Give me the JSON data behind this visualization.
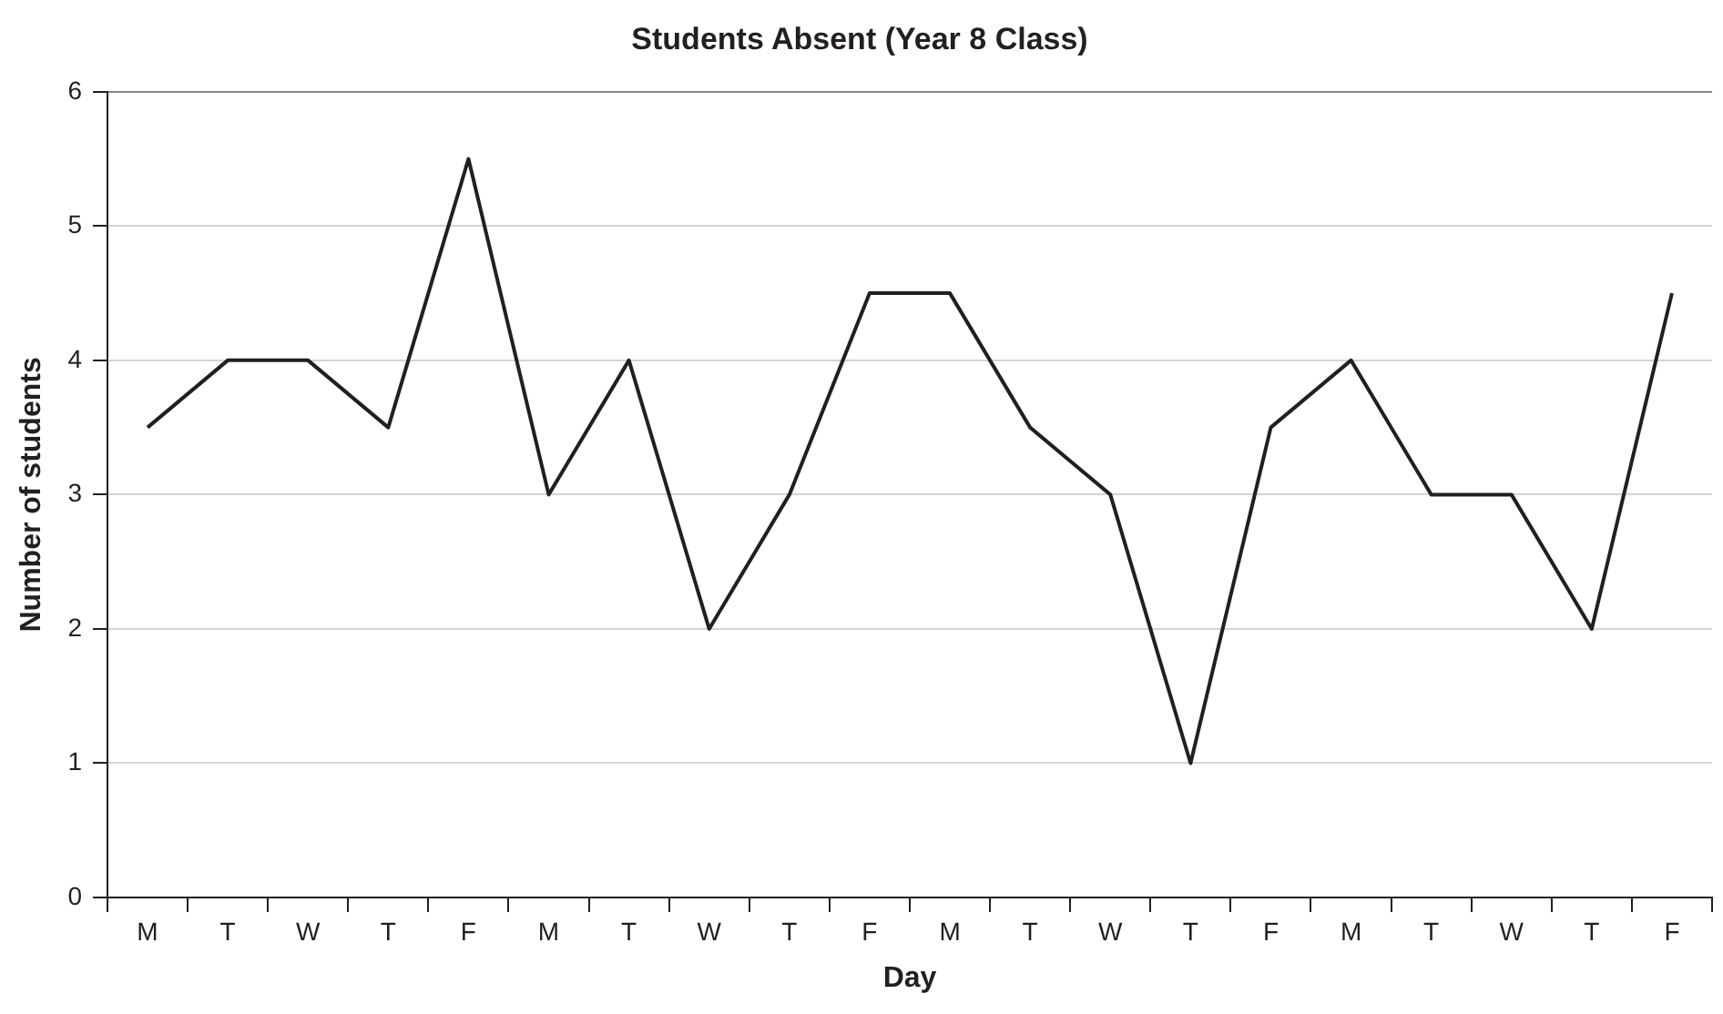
{
  "chart_data": {
    "type": "line",
    "title": "Students Absent (Year 8 Class)",
    "xlabel": "Day",
    "ylabel": "Number of students",
    "categories": [
      "M",
      "T",
      "W",
      "T",
      "F",
      "M",
      "T",
      "W",
      "T",
      "F",
      "M",
      "T",
      "W",
      "T",
      "F",
      "M",
      "T",
      "W",
      "T",
      "F"
    ],
    "series": [
      {
        "color": "#231f20",
        "values": [
          3.5,
          4,
          4,
          3.5,
          5.5,
          3,
          4,
          2,
          3,
          4.5,
          4.5,
          3.5,
          3,
          1,
          3.5,
          4,
          3,
          3,
          2,
          4.5
        ]
      }
    ],
    "ylim": [
      0,
      6
    ],
    "yticks": [
      0,
      1,
      2,
      3,
      4,
      5,
      6
    ],
    "grid": "y",
    "legend": false,
    "marker": "none",
    "line_style": "solid"
  }
}
